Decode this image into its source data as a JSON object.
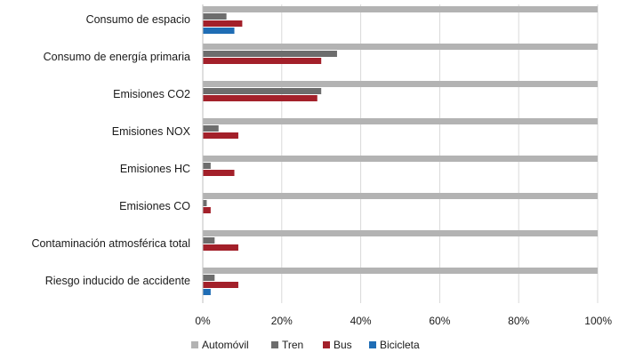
{
  "chart_data": {
    "type": "bar",
    "orientation": "horizontal",
    "title": "",
    "xlabel": "",
    "ylabel": "",
    "categories": [
      "Consumo de espacio",
      "Consumo de energía primaria",
      "Emisiones CO2",
      "Emisiones NOX",
      "Emisiones HC",
      "Emisiones CO",
      "Contaminación atmosférica total",
      "Riesgo inducido de accidente"
    ],
    "series": [
      {
        "name": "Automóvil",
        "color": "#b3b3b3",
        "values": [
          100,
          100,
          100,
          100,
          100,
          100,
          100,
          100
        ]
      },
      {
        "name": "Tren",
        "color": "#6d6d6d",
        "values": [
          6,
          34,
          30,
          4,
          2,
          1,
          3,
          3
        ]
      },
      {
        "name": "Bus",
        "color": "#a3202a",
        "values": [
          10,
          30,
          29,
          9,
          8,
          2,
          9,
          9
        ]
      },
      {
        "name": "Bicicleta",
        "color": "#1f6db5",
        "values": [
          8,
          0,
          0,
          0,
          0,
          0,
          0,
          2
        ]
      }
    ],
    "xlim": [
      0,
      100
    ],
    "xticks": [
      0,
      20,
      40,
      60,
      80,
      100
    ],
    "tick_labels": [
      "0%",
      "20%",
      "40%",
      "60%",
      "80%",
      "100%"
    ],
    "grid": true,
    "legend_position": "bottom"
  }
}
